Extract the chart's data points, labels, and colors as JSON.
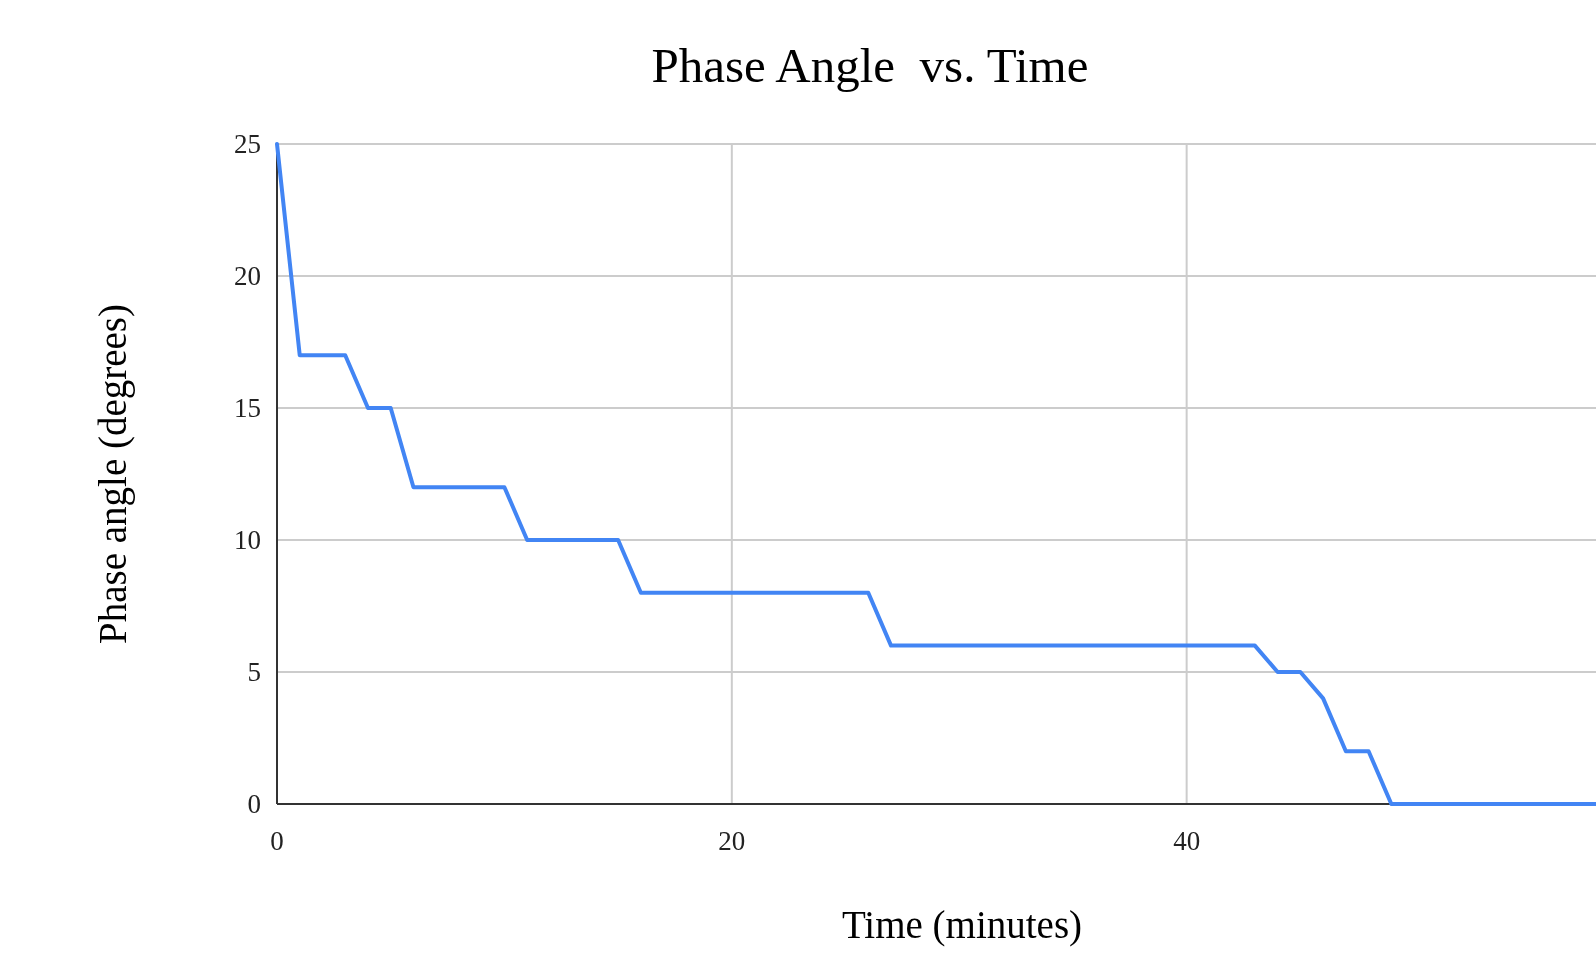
{
  "chart_data": {
    "type": "line",
    "title": "Phase Angle  vs. Time",
    "xlabel": "Time (minutes)",
    "ylabel": "Phase angle (degrees)",
    "x": [
      0,
      1,
      3,
      4,
      5,
      6,
      10,
      11,
      15,
      16,
      26,
      27,
      43,
      44,
      45,
      46,
      47,
      48,
      49,
      58
    ],
    "series": [
      {
        "color": "#4285f4",
        "values": [
          25,
          17,
          17,
          15,
          15,
          12,
          12,
          10,
          10,
          8,
          8,
          6,
          6,
          5,
          5,
          4,
          2,
          2,
          0,
          0
        ]
      }
    ],
    "xlim": [
      0,
      58
    ],
    "xticks": [
      0,
      20,
      40
    ],
    "ylim": [
      0,
      25
    ],
    "yticks": [
      0,
      5,
      10,
      15,
      20,
      25
    ],
    "grid": true,
    "marker": "none",
    "line_style": "solid"
  }
}
